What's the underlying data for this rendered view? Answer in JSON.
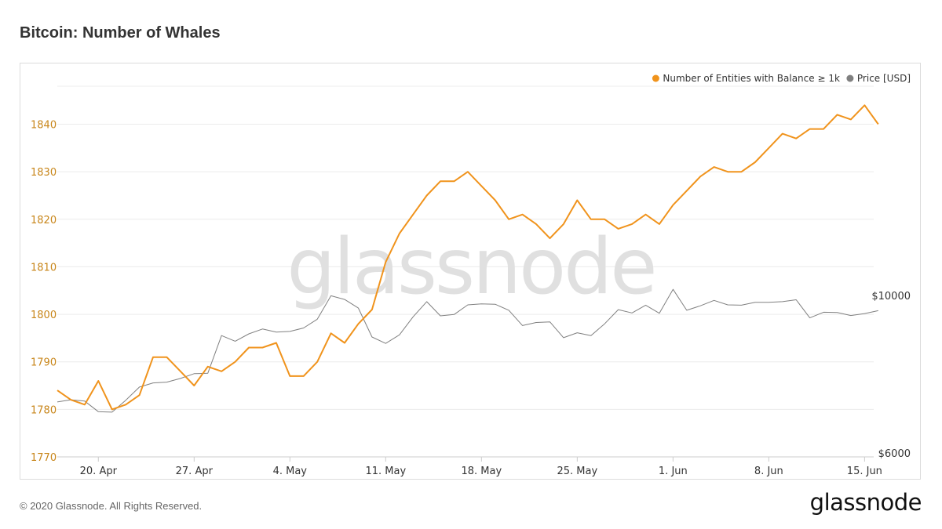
{
  "page": {
    "title": "Bitcoin: Number of Whales",
    "copyright": "© 2020 Glassnode. All Rights Reserved.",
    "logo_text": "glassnode",
    "watermark_text": "glassnode"
  },
  "chart_data": {
    "type": "line",
    "title": "Bitcoin: Number of Whales",
    "legend_position": "top-right",
    "grid": true,
    "x_tick_labels": [
      "20. Apr",
      "27. Apr",
      "4. May",
      "11. May",
      "18. May",
      "25. May",
      "1. Jun",
      "8. Jun",
      "15. Jun"
    ],
    "x_dates": [
      "2020-04-17",
      "2020-04-18",
      "2020-04-19",
      "2020-04-20",
      "2020-04-21",
      "2020-04-22",
      "2020-04-23",
      "2020-04-24",
      "2020-04-25",
      "2020-04-26",
      "2020-04-27",
      "2020-04-28",
      "2020-04-29",
      "2020-04-30",
      "2020-05-01",
      "2020-05-02",
      "2020-05-03",
      "2020-05-04",
      "2020-05-05",
      "2020-05-06",
      "2020-05-07",
      "2020-05-08",
      "2020-05-09",
      "2020-05-10",
      "2020-05-11",
      "2020-05-12",
      "2020-05-13",
      "2020-05-14",
      "2020-05-15",
      "2020-05-16",
      "2020-05-17",
      "2020-05-18",
      "2020-05-19",
      "2020-05-20",
      "2020-05-21",
      "2020-05-22",
      "2020-05-23",
      "2020-05-24",
      "2020-05-25",
      "2020-05-26",
      "2020-05-27",
      "2020-05-28",
      "2020-05-29",
      "2020-05-30",
      "2020-05-31",
      "2020-06-01",
      "2020-06-02",
      "2020-06-03",
      "2020-06-04",
      "2020-06-05",
      "2020-06-06",
      "2020-06-07",
      "2020-06-08",
      "2020-06-09",
      "2020-06-10",
      "2020-06-11",
      "2020-06-12",
      "2020-06-13",
      "2020-06-14",
      "2020-06-15",
      "2020-06-16"
    ],
    "left_axis": {
      "ticks": [
        "1770",
        "1780",
        "1790",
        "1800",
        "1810",
        "1820",
        "1830",
        "1840"
      ],
      "ylim": [
        1770,
        1848
      ],
      "color": "#c8861a"
    },
    "right_axis": {
      "ticks": [
        "$6000",
        "$10000"
      ],
      "ylim": [
        6000,
        10000
      ],
      "scale": "log",
      "color": "#333333"
    },
    "series": [
      {
        "name": "Number of Entities with Balance ≥ 1k",
        "axis": "left",
        "color": "#f0931c",
        "values": [
          1784,
          1782,
          1781,
          1786,
          1780,
          1781,
          1783,
          1791,
          1791,
          1788,
          1785,
          1789,
          1788,
          1790,
          1793,
          1793,
          1794,
          1787,
          1787,
          1790,
          1796,
          1794,
          1798,
          1801,
          1811,
          1817,
          1821,
          1825,
          1828,
          1828,
          1830,
          1827,
          1824,
          1820,
          1821,
          1819,
          1816,
          1819,
          1824,
          1820,
          1820,
          1818,
          1819,
          1821,
          1819,
          1823,
          1826,
          1829,
          1831,
          1830,
          1830,
          1832,
          1835,
          1838,
          1837,
          1839,
          1839,
          1842,
          1841,
          1844,
          1840
        ]
      },
      {
        "name": "Price [USD]",
        "axis": "right",
        "color": "#808080",
        "values": [
          7080,
          7130,
          7100,
          6860,
          6850,
          7120,
          7430,
          7530,
          7550,
          7640,
          7760,
          7770,
          8780,
          8620,
          8830,
          8970,
          8880,
          8900,
          9000,
          9260,
          9990,
          9870,
          9600,
          8740,
          8560,
          8800,
          9330,
          9800,
          9360,
          9400,
          9700,
          9730,
          9720,
          9530,
          9070,
          9160,
          9180,
          8720,
          8860,
          8780,
          9120,
          9550,
          9450,
          9690,
          9440,
          10200,
          9530,
          9670,
          9840,
          9700,
          9690,
          9780,
          9780,
          9800,
          9860,
          9300,
          9470,
          9460,
          9370,
          9430,
          9520
        ]
      }
    ]
  }
}
